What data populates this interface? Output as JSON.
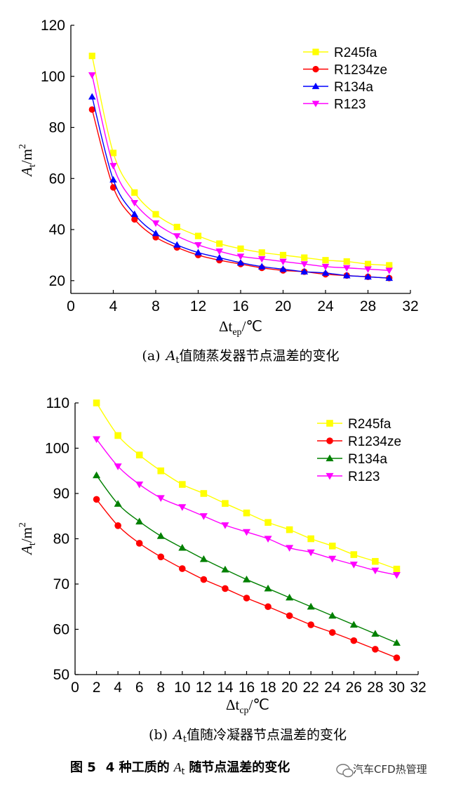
{
  "chart_data": [
    {
      "type": "line",
      "id": "a",
      "xlabel_main": "Δt",
      "xlabel_sub": "ep",
      "xlabel_unit": "/℃",
      "ylabel_main": "A",
      "ylabel_sub": "t",
      "ylabel_unit": "/m",
      "ylabel_sup": "2",
      "xlim": [
        0,
        32
      ],
      "ylim": [
        15,
        120
      ],
      "xticks": [
        0,
        4,
        8,
        12,
        16,
        20,
        24,
        28,
        32
      ],
      "yticks": [
        20,
        40,
        60,
        80,
        100,
        120
      ],
      "legend_position": "top-right",
      "caption_prefix": "(a)",
      "caption_var": "A",
      "caption_sub": "t",
      "caption_text": "值随蒸发器节点温差的变化",
      "x": [
        2,
        4,
        6,
        8,
        10,
        12,
        14,
        16,
        18,
        20,
        22,
        24,
        26,
        28,
        30
      ],
      "series": [
        {
          "name": "R245fa",
          "color": "#ffff00",
          "marker": "square",
          "values": [
            108,
            70,
            54.5,
            46,
            41,
            37.5,
            34.5,
            32.5,
            31,
            30,
            29,
            28,
            27.5,
            26.5,
            26
          ]
        },
        {
          "name": "R1234ze",
          "color": "#ff0000",
          "marker": "circle",
          "values": [
            87,
            56.5,
            44,
            37,
            33,
            30,
            28,
            26.5,
            25,
            24,
            23.5,
            22.5,
            22,
            21.5,
            21
          ]
        },
        {
          "name": "R134a",
          "color": "#0000ff",
          "marker": "triangle-up",
          "values": [
            92,
            59.5,
            46,
            38.5,
            34,
            31,
            29,
            27,
            25.5,
            24.5,
            23.5,
            23,
            22,
            21.5,
            21
          ]
        },
        {
          "name": "R123",
          "color": "#ff00ff",
          "marker": "triangle-down",
          "values": [
            100.5,
            65,
            50.5,
            42.5,
            37.5,
            34,
            31.5,
            29.5,
            28.5,
            27.5,
            26.5,
            25.5,
            25,
            24.5,
            24
          ]
        }
      ]
    },
    {
      "type": "line",
      "id": "b",
      "xlabel_main": "Δt",
      "xlabel_sub": "cp",
      "xlabel_unit": "/℃",
      "ylabel_main": "A",
      "ylabel_sub": "t",
      "ylabel_unit": "/m",
      "ylabel_sup": "2",
      "xlim": [
        0,
        32
      ],
      "ylim": [
        50,
        110
      ],
      "xticks": [
        0,
        2,
        4,
        6,
        8,
        10,
        12,
        14,
        16,
        18,
        20,
        22,
        24,
        26,
        28,
        30,
        32
      ],
      "yticks": [
        50,
        60,
        70,
        80,
        90,
        100,
        110
      ],
      "legend_position": "top-right",
      "caption_prefix": "(b)",
      "caption_var": "A",
      "caption_sub": "t",
      "caption_text": "值随冷凝器节点温差的变化",
      "x": [
        2,
        4,
        6,
        8,
        10,
        12,
        14,
        16,
        18,
        20,
        22,
        24,
        26,
        28,
        30
      ],
      "series": [
        {
          "name": "R245fa",
          "color": "#ffff00",
          "marker": "square",
          "values": [
            110,
            102.8,
            98.5,
            95,
            92,
            90,
            87.8,
            85.7,
            83.6,
            82,
            80,
            78.4,
            76.5,
            75,
            73.3
          ]
        },
        {
          "name": "R1234ze",
          "color": "#ff0000",
          "marker": "circle",
          "values": [
            88.7,
            82.9,
            79,
            76,
            73.4,
            71,
            69,
            66.9,
            65,
            63,
            61,
            59.3,
            57.5,
            55.6,
            53.7
          ]
        },
        {
          "name": "R134a",
          "color": "#008000",
          "marker": "triangle-up",
          "values": [
            94,
            87.7,
            83.8,
            80.6,
            78,
            75.5,
            73.2,
            71,
            69,
            67,
            65,
            63,
            61,
            59,
            57
          ]
        },
        {
          "name": "R123",
          "color": "#ff00ff",
          "marker": "triangle-down",
          "values": [
            102,
            96,
            92,
            89,
            87,
            85,
            83,
            81.5,
            80,
            78,
            77,
            75.6,
            74.3,
            73,
            72
          ]
        }
      ]
    }
  ],
  "figure_caption": {
    "label": "图 5",
    "text_prefix": "4 种工质的",
    "var": "A",
    "sub": "t",
    "text_suffix": "随节点温差的变化"
  },
  "watermark": "汽车CFD热管理"
}
